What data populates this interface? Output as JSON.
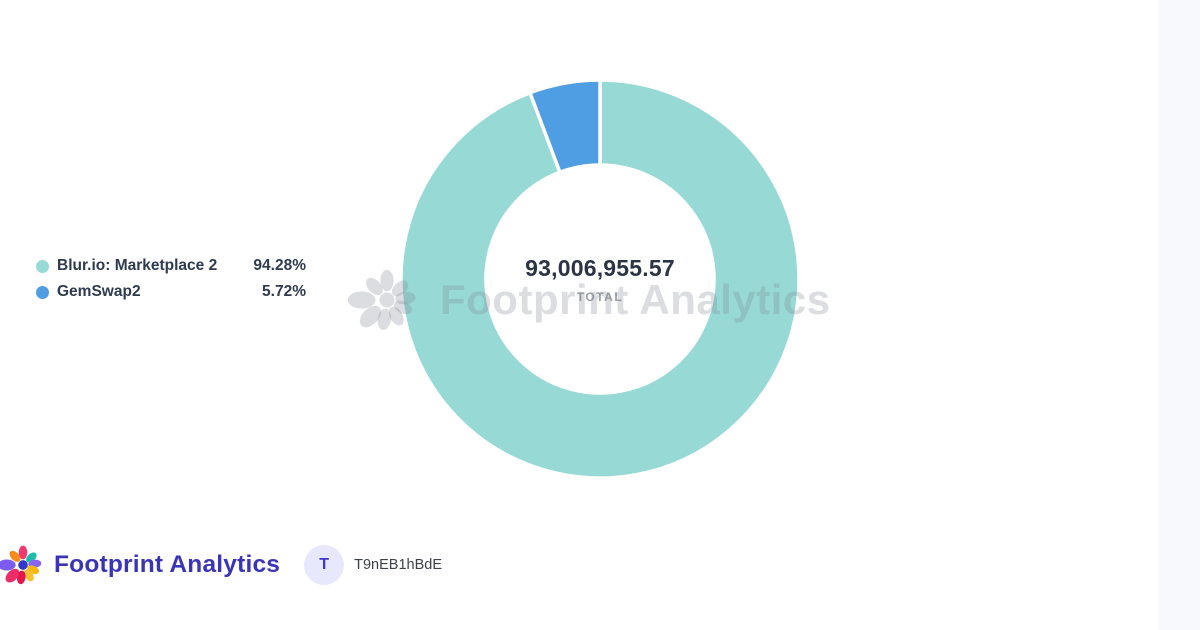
{
  "page": {
    "background": "#ffffff",
    "right_strip_color": "#f8f9fc"
  },
  "chart_data": {
    "type": "pie",
    "subtype": "donut",
    "categories": [
      "Blur.io: Marketplace 2",
      "GemSwap2"
    ],
    "values": [
      94.28,
      5.72
    ],
    "unit": "percent",
    "colors": [
      "#97dad5",
      "#4f9de2"
    ],
    "start_angle_deg": 0,
    "direction": "clockwise",
    "center_total": "93,006,955.57",
    "center_label": "TOTAL",
    "legend_position": "left-middle",
    "slice_border_color": "#ffffff"
  },
  "legend": {
    "items": [
      {
        "label": "Blur.io: Marketplace 2",
        "value": "94.28%",
        "color": "#97dad5"
      },
      {
        "label": "GemSwap2",
        "value": "5.72%",
        "color": "#4f9de2"
      }
    ]
  },
  "watermark": {
    "text": "Footprint Analytics",
    "icon": "footprint-flower-icon"
  },
  "footer": {
    "brand_name": "Footprint Analytics",
    "brand_color": "#3a34b8",
    "logo": {
      "center_color": "#3438c9",
      "petal_colors": [
        "#ee3a6e",
        "#1bbcaa",
        "#8a63f2",
        "#f9b912",
        "#fbc02d",
        "#e5174d",
        "#ed2d67",
        "#7b5bf0",
        "#f98a1c"
      ]
    },
    "user": {
      "avatar_letter": "T",
      "name": "T9nEB1hBdE"
    }
  }
}
